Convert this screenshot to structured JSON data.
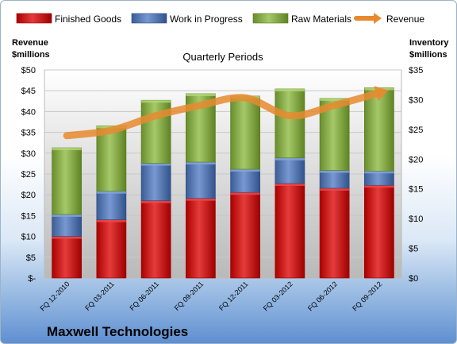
{
  "chart_data": {
    "type": "bar",
    "stacked": true,
    "title": "Quarterly Periods",
    "company": "Maxwell Technologies",
    "categories": [
      "FQ 12-2010",
      "FQ 03-2011",
      "FQ 06-2011",
      "FQ 09-2011",
      "FQ 12-2011",
      "FQ 03-2012",
      "FQ 06-2012",
      "FQ 09-2012"
    ],
    "series": [
      {
        "name": "Finished Goods",
        "axis": "right",
        "color": "#cc2222",
        "values": [
          7.0,
          9.8,
          13.0,
          13.4,
          14.4,
          15.9,
          15.1,
          15.6
        ]
      },
      {
        "name": "Work in Progress",
        "axis": "right",
        "color": "#5f7fb8",
        "values": [
          3.7,
          4.8,
          6.3,
          6.1,
          3.9,
          4.3,
          3.0,
          2.4
        ]
      },
      {
        "name": "Raw Materials",
        "axis": "right",
        "color": "#8cb050",
        "values": [
          11.2,
          11.0,
          10.6,
          11.5,
          12.3,
          11.6,
          12.1,
          14.0
        ]
      },
      {
        "name": "Revenue",
        "axis": "left",
        "type": "line",
        "color": "#e8892f",
        "values": [
          34.2,
          35.5,
          39.0,
          41.5,
          43.3,
          39.0,
          41.5,
          44.5
        ]
      }
    ],
    "y_left": {
      "label_line1": "Revenue",
      "label_line2": "$millions",
      "range": [
        0,
        50
      ],
      "ticks": [
        "$-",
        "$5",
        "$10",
        "$15",
        "$20",
        "$25",
        "$30",
        "$35",
        "$40",
        "$45",
        "$50"
      ]
    },
    "y_right": {
      "label_line1": "Inventory",
      "label_line2": "$millions",
      "range": [
        0,
        35
      ],
      "ticks": [
        "$0",
        "$5",
        "$10",
        "$15",
        "$20",
        "$25",
        "$30",
        "$35"
      ]
    },
    "legend": "top",
    "grid": true
  }
}
